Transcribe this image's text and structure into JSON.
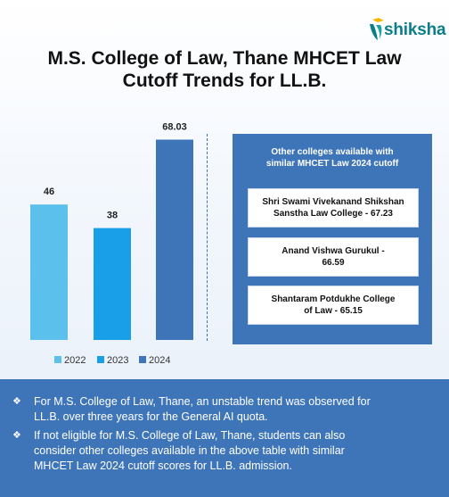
{
  "brand": {
    "name": "shiksha"
  },
  "title_lines": [
    "M.S. College of Law, Thane MHCET Law",
    "Cutoff Trends for LL.B."
  ],
  "colors": {
    "bar_2022": "#5bc0eb",
    "bar_2023": "#199fe8",
    "bar_2024": "#3e75b8",
    "panel": "#3e75b8",
    "brand_teal": "#0c7e8a",
    "brand_yellow": "#f5b800"
  },
  "chart_data": {
    "type": "bar",
    "categories": [
      "2022",
      "2023",
      "2024"
    ],
    "values": [
      46,
      38,
      68.03
    ],
    "value_labels": [
      "46",
      "38",
      "68.03"
    ],
    "legend": [
      "2022",
      "2023",
      "2024"
    ],
    "legend_position": "bottom",
    "grid": false
  },
  "side_panel": {
    "title_lines": [
      "Other colleges available with",
      "similar MHCET Law 2024 cutoff"
    ],
    "colleges": [
      {
        "lines": [
          "Shri Swami Vivekanand Shikshan",
          "Sanstha Law College - 67.23"
        ]
      },
      {
        "lines": [
          "Anand Vishwa Gurukul -",
          "66.59"
        ]
      },
      {
        "lines": [
          "Shantaram Potdukhe College",
          "of Law - 65.15"
        ]
      }
    ]
  },
  "notes": [
    {
      "lines": [
        "For M.S. College of Law, Thane, an unstable trend was observed for",
        "LL.B. over three years for the General AI quota."
      ]
    },
    {
      "lines": [
        "If not eligible for M.S. College of Law, Thane, students can also",
        "consider other colleges available in the above table with similar",
        "MHCET Law 2024 cutoff scores for LL.B. admission."
      ]
    }
  ],
  "bullet_glyph": "❖"
}
